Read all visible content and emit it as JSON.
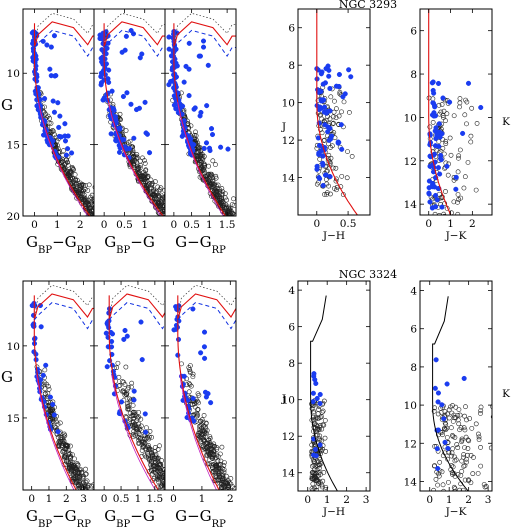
{
  "figure": {
    "labels": {
      "g_axis": "G",
      "j_axis": "J",
      "k_axis": "K",
      "xl_bp_rp": "G",
      "xl_bp_rp_sub1": "BP",
      "xl_bp_rp_mid": "−G",
      "xl_bp_rp_sub2": "RP",
      "xl_bp_g": "G",
      "xl_bp_g_sub": "BP",
      "xl_bp_g_rest": "−G",
      "xl_g_rp": "G−G",
      "xl_g_rp_sub": "RP",
      "xl_jh": "J−H",
      "xl_jk": "J−K"
    }
  },
  "chart_data": [
    {
      "type": "scatter",
      "title": "NGC 3293",
      "panels": [
        {
          "id": "G_vs_BP-RP",
          "xlabel": "G_BP − G_RP",
          "ylabel": "G",
          "xlim": [
            -0.5,
            2.6
          ],
          "ylim": [
            20,
            5.5
          ],
          "xticks": [
            0,
            1,
            2
          ],
          "yticks": [
            10,
            15,
            20
          ]
        },
        {
          "id": "G_vs_BP-G",
          "xlabel": "G_BP − G",
          "ylabel": "G",
          "xlim": [
            -0.25,
            1.5
          ],
          "ylim": [
            20,
            5.5
          ],
          "xticks": [
            0,
            0.5,
            1
          ],
          "yticks": [
            10,
            15,
            20
          ]
        },
        {
          "id": "G_vs_G-RP",
          "xlabel": "G − G_RP",
          "ylabel": "G",
          "xlim": [
            -0.25,
            1.75
          ],
          "ylim": [
            20,
            5.5
          ],
          "xticks": [
            0,
            0.5,
            1,
            1.5
          ],
          "yticks": [
            10,
            15,
            20
          ]
        },
        {
          "id": "J_vs_J-H",
          "xlabel": "J−H",
          "ylabel": "J",
          "xlim": [
            -0.3,
            0.85
          ],
          "ylim": [
            16,
            5
          ],
          "xticks": [
            0,
            0.5
          ],
          "yticks": [
            6,
            8,
            10,
            12,
            14
          ]
        },
        {
          "id": "K_vs_J-K",
          "xlabel": "J−K",
          "ylabel": "K",
          "xlim": [
            -0.4,
            2.9
          ],
          "ylim": [
            14.5,
            5
          ],
          "xticks": [
            0,
            1,
            2
          ],
          "yticks": [
            6,
            8,
            10,
            12,
            14
          ]
        }
      ]
    },
    {
      "type": "scatter",
      "title": "NGC 3324",
      "panels": [
        {
          "id": "G_vs_BP-RP",
          "xlabel": "G_BP − G_RP",
          "ylabel": "G",
          "xlim": [
            -0.5,
            3.6
          ],
          "ylim": [
            20,
            5.5
          ],
          "xticks": [
            0,
            1,
            2,
            3
          ],
          "yticks": [
            10,
            15
          ]
        },
        {
          "id": "G_vs_BP-G",
          "xlabel": "G_BP − G",
          "ylabel": "G",
          "xlim": [
            -0.3,
            1.8
          ],
          "ylim": [
            20,
            5.5
          ],
          "xticks": [
            0,
            0.5,
            1,
            1.5
          ],
          "yticks": [
            10,
            15
          ]
        },
        {
          "id": "G_vs_G-RP",
          "xlabel": "G − G_RP",
          "ylabel": "G",
          "xlim": [
            -0.3,
            2.2
          ],
          "ylim": [
            20,
            5.5
          ],
          "xticks": [
            0,
            1,
            2
          ],
          "yticks": [
            10,
            15
          ]
        },
        {
          "id": "J_vs_J-H",
          "xlabel": "J−H",
          "ylabel": "J",
          "xlim": [
            -0.5,
            3.2
          ],
          "ylim": [
            15,
            3.5
          ],
          "xticks": [
            0,
            1,
            2,
            3
          ],
          "yticks": [
            4,
            6,
            8,
            10,
            12,
            14
          ]
        },
        {
          "id": "K_vs_J-K",
          "xlabel": "J−K",
          "ylabel": "K",
          "xlim": [
            -0.5,
            3.2
          ],
          "ylim": [
            14.5,
            3.5
          ],
          "xticks": [
            0,
            1,
            2,
            3
          ],
          "yticks": [
            4,
            6,
            8,
            10,
            12,
            14
          ]
        }
      ],
      "legend": "none",
      "grid": false
    }
  ]
}
